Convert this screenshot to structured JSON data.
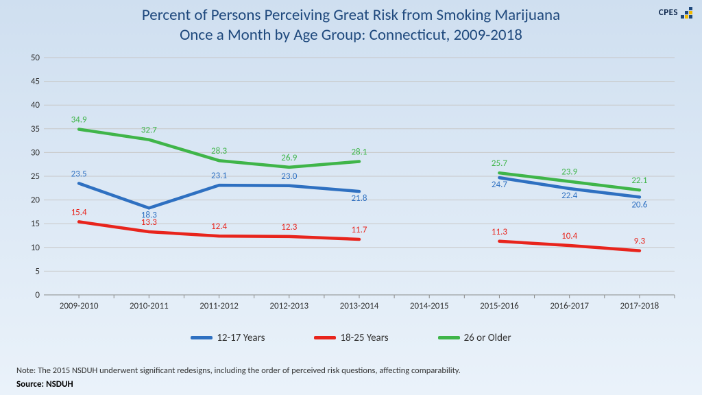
{
  "title_l1": "Percent of Persons Perceiving Great Risk from Smoking Marijuana",
  "title_l2": "Once a Month by Age Group: Connecticut, 2009-2018",
  "logo_text": "CPES",
  "chart": {
    "type": "line",
    "ylim": [
      0,
      50
    ],
    "ytick_step": 5,
    "categories": [
      "2009-2010",
      "2010-2011",
      "2011-2012",
      "2012-2013",
      "2013-2014",
      "2014-2015",
      "2015-2016",
      "2016-2017",
      "2017-2018"
    ],
    "gap_index": 5,
    "series": [
      {
        "name": "12-17 Years",
        "color": "#2e70c1",
        "values": [
          23.5,
          18.3,
          23.1,
          23.0,
          21.8,
          null,
          24.7,
          22.4,
          20.6
        ],
        "label_dy": [
          -10,
          14,
          -10,
          -10,
          14,
          0,
          14,
          14,
          15
        ]
      },
      {
        "name": "18-25 Years",
        "color": "#e8241c",
        "values": [
          15.4,
          13.3,
          12.4,
          12.3,
          11.7,
          null,
          11.3,
          10.4,
          9.3
        ],
        "label_dy": [
          -10,
          -10,
          -10,
          -10,
          -10,
          0,
          -10,
          -10,
          -10
        ]
      },
      {
        "name": "26 or Older",
        "color": "#3fb549",
        "values": [
          34.9,
          32.7,
          28.3,
          26.9,
          28.1,
          null,
          25.7,
          23.9,
          22.1
        ],
        "label_dy": [
          -10,
          -10,
          -10,
          -10,
          -10,
          0,
          -10,
          -10,
          -10
        ]
      }
    ],
    "background_color": "transparent",
    "grid_color": "#c7c7c7"
  },
  "legend_order": [
    0,
    1,
    2
  ],
  "note": "Note: The 2015 NSDUH underwent significant redesigns, including the order of perceived risk questions, affecting comparability.",
  "source_label": "Source:",
  "source_value": "NSDUH"
}
